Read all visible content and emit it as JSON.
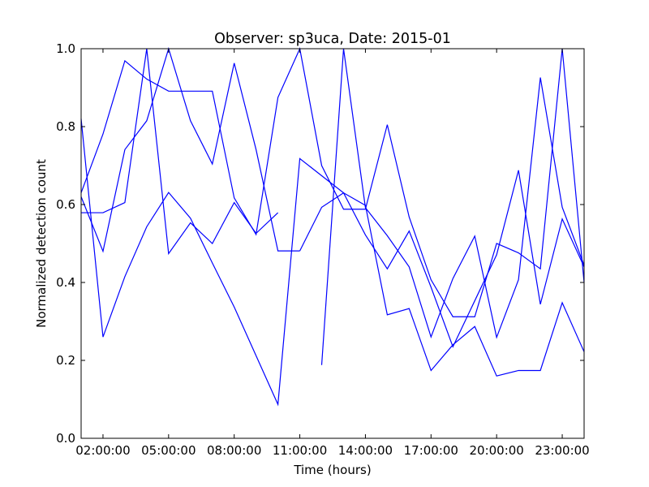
{
  "chart_data": {
    "type": "line",
    "title": "Observer: sp3uca, Date: 2015-01",
    "xlabel": "Time (hours)",
    "ylabel": "Normalized detection count",
    "xlim": [
      "01:00:00",
      "24:00:00"
    ],
    "ylim": [
      0,
      1
    ],
    "x_ticks": [
      "02:00:00",
      "05:00:00",
      "08:00:00",
      "11:00:00",
      "14:00:00",
      "17:00:00",
      "20:00:00",
      "23:00:00"
    ],
    "y_ticks": [
      "0.0",
      "0.2",
      "0.4",
      "0.6",
      "0.8",
      "1.0"
    ],
    "grid": false,
    "line_color": "#0000ff",
    "series": [
      {
        "x": [
          "01:00:00",
          "02:00:00",
          "03:00:00",
          "04:00:00",
          "05:00:00",
          "06:00:00",
          "07:00:00",
          "08:00:00",
          "09:00:00",
          "10:00:00"
        ],
        "values": [
          0.579,
          0.579,
          0.605,
          1.0,
          0.474,
          0.553,
          0.5,
          0.605,
          0.526,
          0.579
        ]
      },
      {
        "x": [
          "01:00:00",
          "02:00:00",
          "03:00:00",
          "04:00:00",
          "05:00:00",
          "06:00:00",
          "07:00:00",
          "08:00:00",
          "09:00:00",
          "10:00:00",
          "11:00:00",
          "12:00:00",
          "13:00:00",
          "14:00:00",
          "15:00:00",
          "16:00:00",
          "17:00:00",
          "18:00:00",
          "19:00:00",
          "20:00:00",
          "21:00:00",
          "22:00:00",
          "23:00:00",
          "24:00:00"
        ],
        "values": [
          0.82,
          0.26,
          0.415,
          0.543,
          0.631,
          0.565,
          0.45,
          0.337,
          0.212,
          0.087,
          0.718,
          0.674,
          0.63,
          0.598,
          0.317,
          0.333,
          0.174,
          0.24,
          0.287,
          0.16,
          0.174,
          0.174,
          0.348,
          0.222
        ]
      },
      {
        "x": [
          "01:00:00",
          "02:00:00",
          "03:00:00",
          "04:00:00",
          "05:00:00",
          "06:00:00",
          "07:00:00",
          "08:00:00",
          "09:00:00",
          "10:00:00",
          "11:00:00",
          "12:00:00",
          "13:00:00",
          "14:00:00",
          "15:00:00",
          "16:00:00",
          "17:00:00",
          "18:00:00",
          "19:00:00",
          "20:00:00",
          "21:00:00",
          "22:00:00",
          "23:00:00",
          "24:00:00"
        ],
        "values": [
          0.63,
          0.781,
          0.969,
          0.922,
          0.891,
          0.891,
          0.891,
          0.617,
          0.523,
          0.875,
          1.0,
          0.7,
          0.588,
          0.588,
          0.805,
          0.568,
          0.407,
          0.312,
          0.312,
          0.5,
          0.476,
          0.435,
          1.0,
          0.4
        ]
      },
      {
        "x": [
          "01:00:00",
          "02:00:00",
          "03:00:00",
          "04:00:00",
          "05:00:00",
          "06:00:00",
          "07:00:00",
          "08:00:00",
          "09:00:00",
          "10:00:00",
          "11:00:00"
        ],
        "values": [
          0.62,
          0.48,
          0.741,
          0.815,
          1.0,
          0.815,
          0.704,
          0.963,
          0.741,
          0.481,
          0.481
        ]
      },
      {
        "x": [
          "12:00:00",
          "13:00:00",
          "14:00:00",
          "15:00:00",
          "16:00:00",
          "17:00:00",
          "18:00:00",
          "19:00:00",
          "20:00:00",
          "21:00:00",
          "22:00:00",
          "23:00:00",
          "24:00:00"
        ],
        "values": [
          0.188,
          1.0,
          0.592,
          0.52,
          0.44,
          0.26,
          0.41,
          0.519,
          0.259,
          0.407,
          0.926,
          0.593,
          0.444
        ]
      },
      {
        "x": [
          "11:00:00",
          "12:00:00",
          "13:00:00",
          "14:00:00",
          "15:00:00",
          "16:00:00",
          "17:00:00",
          "18:00:00",
          "19:00:00",
          "20:00:00",
          "21:00:00",
          "22:00:00",
          "23:00:00",
          "24:00:00"
        ],
        "values": [
          0.481,
          0.593,
          0.63,
          0.522,
          0.435,
          0.532,
          0.388,
          0.235,
          0.353,
          0.471,
          0.688,
          0.344,
          0.563,
          0.44
        ]
      }
    ]
  }
}
